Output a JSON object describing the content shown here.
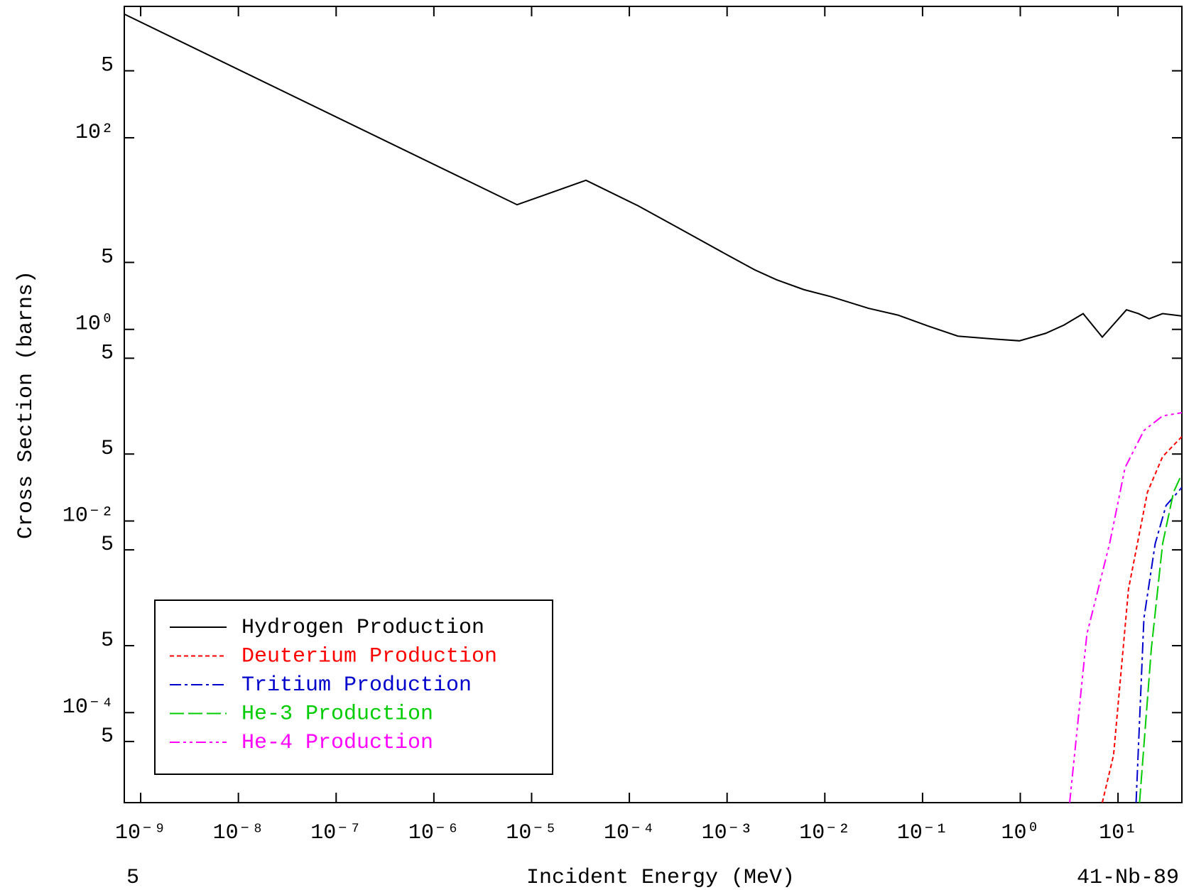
{
  "chart_data": {
    "type": "line",
    "x_label": "Incident Energy (MeV)",
    "y_label": "Cross Section (barns)",
    "footer_left": "5",
    "footer_right": "41-Nb-89",
    "xscale": "log",
    "yscale": "log",
    "xlim": [
      6.8e-10,
      45
    ],
    "ylim": [
      1.15e-05,
      2350
    ],
    "xticks": [
      {
        "value": 1e-09,
        "label": "10⁻⁹"
      },
      {
        "value": 1e-08,
        "label": "10⁻⁸"
      },
      {
        "value": 1e-07,
        "label": "10⁻⁷"
      },
      {
        "value": 1e-06,
        "label": "10⁻⁶"
      },
      {
        "value": 1e-05,
        "label": "10⁻⁵"
      },
      {
        "value": 0.0001,
        "label": "10⁻⁴"
      },
      {
        "value": 0.001,
        "label": "10⁻³"
      },
      {
        "value": 0.01,
        "label": "10⁻²"
      },
      {
        "value": 0.1,
        "label": "10⁻¹"
      },
      {
        "value": 1,
        "label": "10⁰"
      },
      {
        "value": 10,
        "label": "10¹"
      }
    ],
    "yticks": [
      {
        "value": 500,
        "label": "5"
      },
      {
        "value": 100,
        "label": "10²"
      },
      5,
      {
        "value": 1,
        "label": "10⁰"
      },
      {
        "value": 0.5,
        "label": "5"
      },
      {
        "value": 0.05,
        "label": "5"
      },
      {
        "value": 0.01,
        "label": "10⁻²"
      },
      {
        "value": 0.005,
        "label": "5"
      },
      {
        "value": 0.0005,
        "label": "5"
      },
      {
        "value": 0.0001,
        "label": "10⁻⁴"
      },
      {
        "value": 5e-05,
        "label": "5"
      }
    ],
    "series": [
      {
        "name": "Hydrogen Production",
        "color": "#000000",
        "dash": "none",
        "x": [
          6.8e-10,
          7.1e-06,
          3.6e-05,
          0.000123,
          0.00032,
          0.0006,
          0.001,
          0.0019,
          0.0032,
          0.0061,
          0.0115,
          0.028,
          0.056,
          0.115,
          0.23,
          0.48,
          0.98,
          1.82,
          2.8,
          4.4,
          6.9,
          12.2,
          16.2,
          20.8,
          28.6,
          45
        ],
        "values": [
          1950,
          20,
          36,
          19.5,
          11.4,
          8.0,
          6.0,
          4.2,
          3.3,
          2.6,
          2.2,
          1.66,
          1.41,
          1.08,
          0.85,
          0.8,
          0.76,
          0.91,
          1.11,
          1.46,
          0.83,
          1.6,
          1.46,
          1.29,
          1.46,
          1.38
        ]
      },
      {
        "name": "Deuterium Production",
        "color": "#ff0000",
        "dash": "6,4",
        "x": [
          6.9,
          9.0,
          12.8,
          20,
          28.6,
          45
        ],
        "values": [
          1.15e-05,
          3.6e-05,
          0.00195,
          0.02,
          0.047,
          0.076
        ]
      },
      {
        "name": "Tritium Production",
        "color": "#0000cc",
        "dash": "16,5,4,5",
        "x": [
          15.3,
          18.4,
          24,
          31,
          45
        ],
        "values": [
          1.15e-05,
          0.00096,
          0.0058,
          0.0145,
          0.0224
        ]
      },
      {
        "name": "He-3 Production",
        "color": "#00cc00",
        "dash": "20,6",
        "x": [
          16.6,
          21.9,
          28.6,
          37,
          45
        ],
        "values": [
          1.15e-05,
          0.00046,
          0.0058,
          0.02,
          0.031
        ]
      },
      {
        "name": "He-4 Production",
        "color": "#ff00ff",
        "dash": "14,5,4,5,4,5",
        "x": [
          3.2,
          4.8,
          8.2,
          11.8,
          18.4,
          28.6,
          45
        ],
        "values": [
          1.15e-05,
          0.00066,
          0.0058,
          0.036,
          0.088,
          0.125,
          0.135
        ]
      }
    ]
  }
}
